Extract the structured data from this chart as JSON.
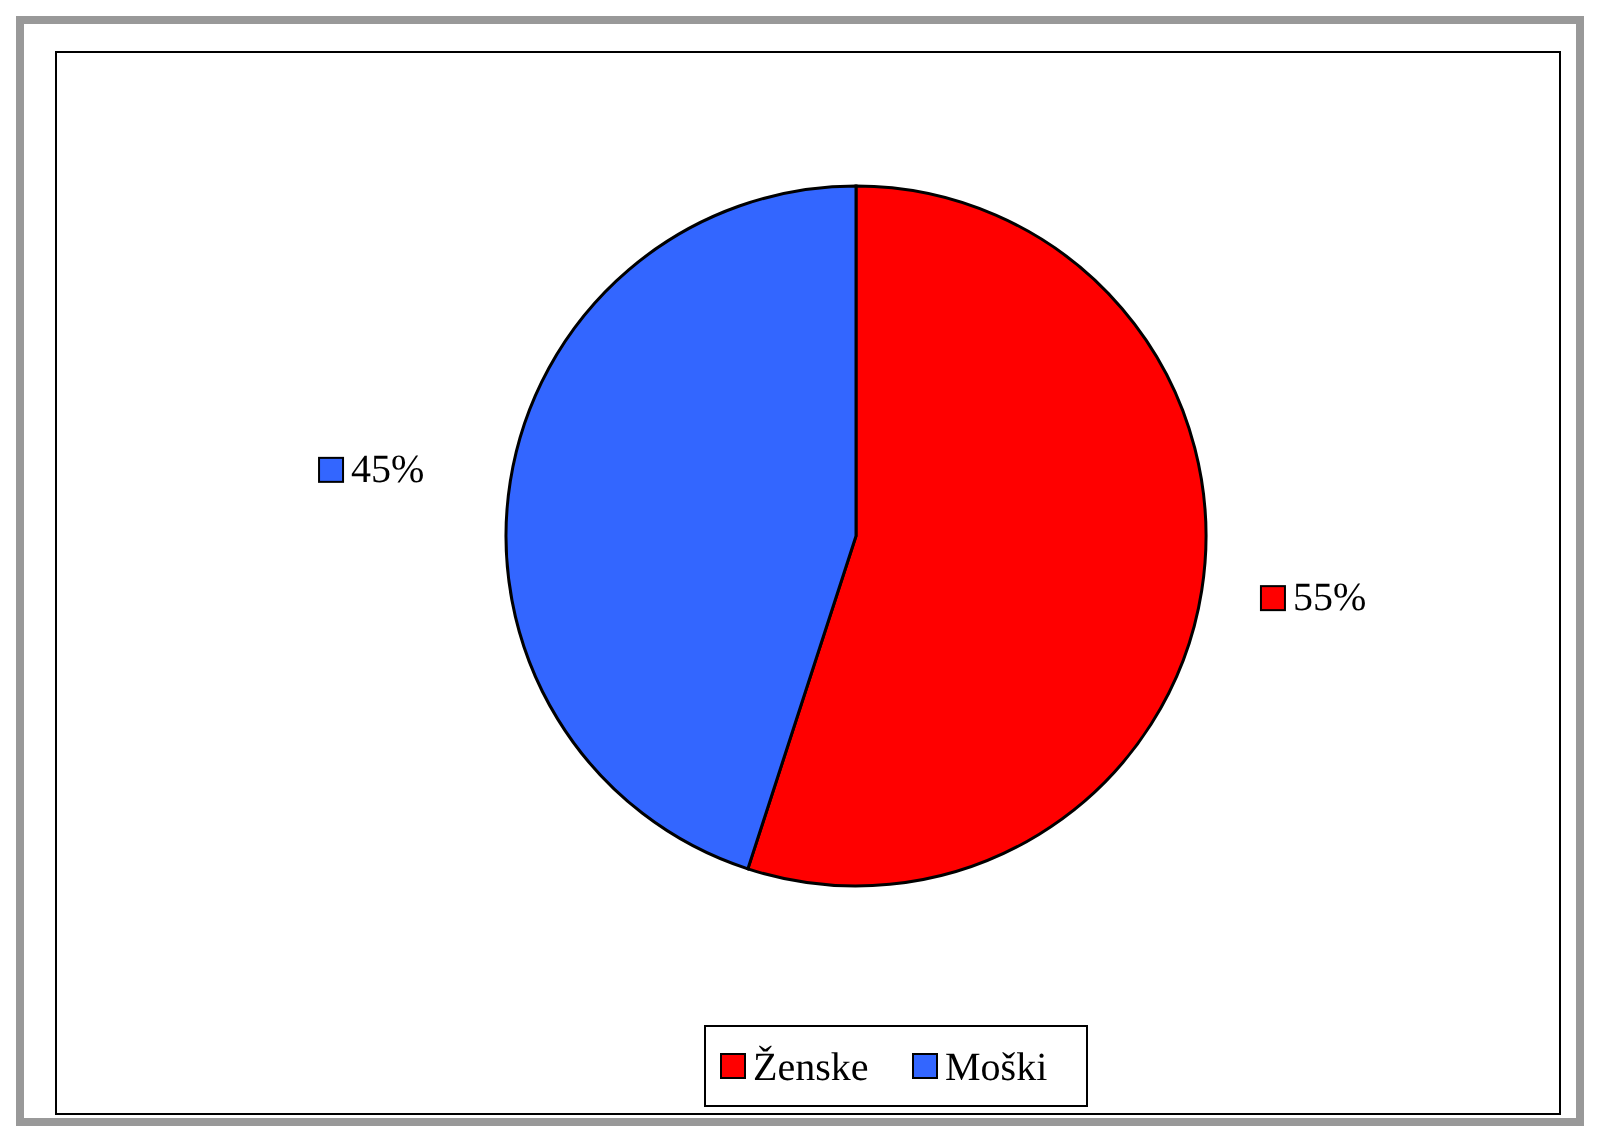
{
  "chart_data": {
    "type": "pie",
    "categories": [
      "Ženske",
      "Moški"
    ],
    "values": [
      55,
      45
    ],
    "colors": [
      "#ff0000",
      "#3366ff"
    ],
    "value_labels": [
      "55%",
      "45%"
    ],
    "legend": "bottom"
  }
}
